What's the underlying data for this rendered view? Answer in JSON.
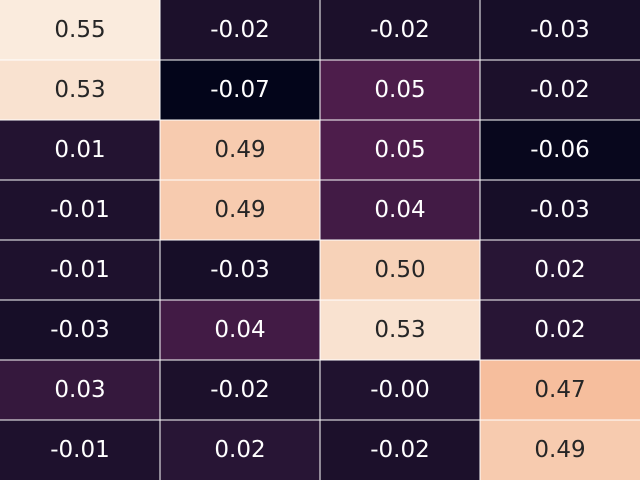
{
  "chart_data": {
    "type": "heatmap",
    "rows": 8,
    "cols": 4,
    "values": [
      [
        "0.55",
        "-0.02",
        "-0.02",
        "-0.03"
      ],
      [
        "0.53",
        "-0.07",
        "0.05",
        "-0.02"
      ],
      [
        "0.01",
        "0.49",
        "0.05",
        "-0.06"
      ],
      [
        "-0.01",
        "0.49",
        "0.04",
        "-0.03"
      ],
      [
        "-0.01",
        "-0.03",
        "0.50",
        "0.02"
      ],
      [
        "-0.03",
        "0.04",
        "0.53",
        "0.02"
      ],
      [
        "0.03",
        "-0.02",
        "-0.00",
        "0.47"
      ],
      [
        "-0.01",
        "0.02",
        "-0.02",
        "0.49"
      ]
    ],
    "colormap": "rocket",
    "vmin": -0.07,
    "vmax": 0.55,
    "grid": true,
    "grid_color": "#ffffff",
    "annotations": true,
    "colorbar": false,
    "text_color_dark_cells": "#ffffff",
    "text_color_light_cells": "#262626"
  }
}
